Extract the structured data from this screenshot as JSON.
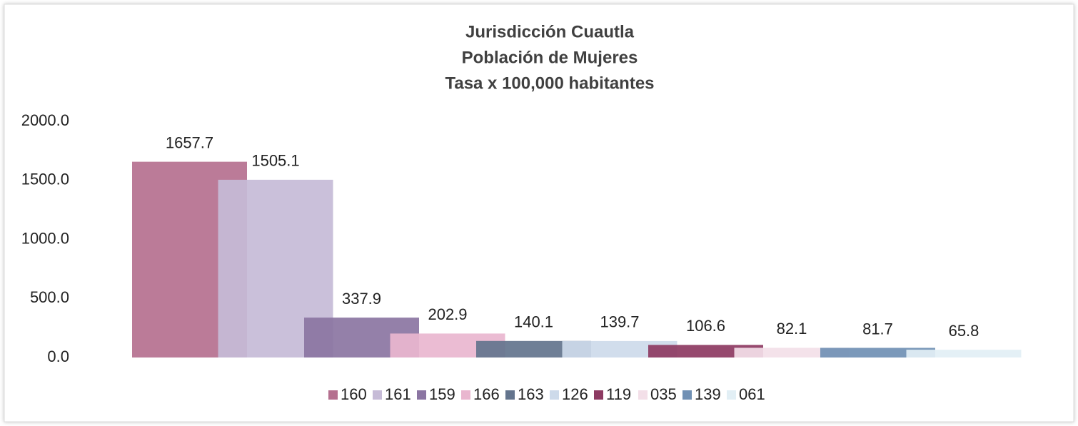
{
  "chart_data": {
    "type": "bar",
    "title": [
      "Jurisdicción Cuautla",
      "Población de Mujeres",
      "Tasa x 100,000 habitantes"
    ],
    "series": [
      {
        "name": "160",
        "color": "#b5708f",
        "values": [
          1657.7
        ]
      },
      {
        "name": "161",
        "color": "#c6bbd7",
        "values": [
          1505.1
        ]
      },
      {
        "name": "159",
        "color": "#8b75a2",
        "values": [
          337.9
        ]
      },
      {
        "name": "166",
        "color": "#e9b6cf",
        "values": [
          202.9
        ]
      },
      {
        "name": "163",
        "color": "#63748d",
        "values": [
          140.1
        ]
      },
      {
        "name": "126",
        "color": "#cddaea",
        "values": [
          139.7
        ]
      },
      {
        "name": "119",
        "color": "#8d3a62",
        "values": [
          106.6
        ]
      },
      {
        "name": "035",
        "color": "#f3dfe8",
        "values": [
          82.1
        ]
      },
      {
        "name": "139",
        "color": "#7090b4",
        "values": [
          81.7
        ]
      },
      {
        "name": "061",
        "color": "#e2eff5",
        "values": [
          65.8
        ]
      }
    ],
    "ylim": [
      0,
      2000
    ],
    "yticks": [
      {
        "value": 0,
        "label": "0.0"
      },
      {
        "value": 500,
        "label": "500.0"
      },
      {
        "value": 1000,
        "label": "1000.0"
      },
      {
        "value": 1500,
        "label": "1500.0"
      },
      {
        "value": 2000,
        "label": "2000.0"
      }
    ],
    "grid": false,
    "legend": "bottom"
  }
}
